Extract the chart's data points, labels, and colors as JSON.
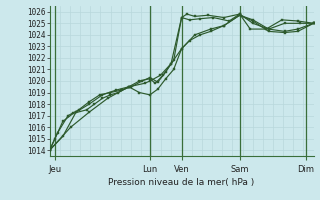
{
  "xlabel": "Pression niveau de la mer( hPa )",
  "bg_color": "#cce8ec",
  "grid_minor_color": "#b8d8dc",
  "grid_major_color": "#a0c4c8",
  "line_color": "#2d5a2d",
  "marker_color": "#2d5a2d",
  "ylim": [
    1013.5,
    1026.5
  ],
  "xlim": [
    0,
    100
  ],
  "yticks": [
    1014,
    1015,
    1016,
    1017,
    1018,
    1019,
    1020,
    1021,
    1022,
    1023,
    1024,
    1025,
    1026
  ],
  "day_positions": [
    2,
    38,
    50,
    72,
    97
  ],
  "day_labels": [
    "Jeu",
    "Lun",
    "Ven",
    "Sam",
    "Dim"
  ],
  "vline_positions": [
    2,
    38,
    50,
    72,
    97
  ],
  "series": [
    [
      [
        0,
        1014.0
      ],
      [
        2,
        1015.0
      ],
      [
        5,
        1016.5
      ],
      [
        9,
        1017.2
      ],
      [
        14,
        1017.5
      ],
      [
        17,
        1018.0
      ],
      [
        20,
        1018.5
      ],
      [
        23,
        1018.8
      ],
      [
        26,
        1019.0
      ],
      [
        30,
        1019.5
      ],
      [
        34,
        1020.0
      ],
      [
        38,
        1020.2
      ],
      [
        40,
        1019.8
      ],
      [
        43,
        1020.5
      ],
      [
        46,
        1021.5
      ],
      [
        50,
        1025.5
      ],
      [
        52,
        1025.8
      ],
      [
        55,
        1025.6
      ],
      [
        60,
        1025.7
      ],
      [
        66,
        1025.5
      ],
      [
        72,
        1025.8
      ],
      [
        76,
        1024.5
      ],
      [
        82,
        1024.5
      ],
      [
        88,
        1025.3
      ],
      [
        94,
        1025.2
      ],
      [
        100,
        1025.0
      ]
    ],
    [
      [
        0,
        1014.0
      ],
      [
        3,
        1015.5
      ],
      [
        7,
        1017.0
      ],
      [
        11,
        1017.5
      ],
      [
        15,
        1018.2
      ],
      [
        19,
        1018.8
      ],
      [
        23,
        1019.0
      ],
      [
        27,
        1019.2
      ],
      [
        31,
        1019.5
      ],
      [
        35,
        1020.0
      ],
      [
        38,
        1020.3
      ],
      [
        41,
        1019.9
      ],
      [
        44,
        1020.8
      ],
      [
        47,
        1021.8
      ],
      [
        50,
        1025.5
      ],
      [
        53,
        1025.3
      ],
      [
        57,
        1025.4
      ],
      [
        62,
        1025.5
      ],
      [
        68,
        1025.2
      ],
      [
        72,
        1025.8
      ],
      [
        77,
        1025.0
      ],
      [
        83,
        1024.5
      ],
      [
        89,
        1025.0
      ],
      [
        95,
        1025.0
      ],
      [
        100,
        1025.0
      ]
    ],
    [
      [
        0,
        1014.0
      ],
      [
        5,
        1015.2
      ],
      [
        10,
        1017.3
      ],
      [
        15,
        1018.0
      ],
      [
        20,
        1018.8
      ],
      [
        25,
        1019.2
      ],
      [
        30,
        1019.5
      ],
      [
        34,
        1019.0
      ],
      [
        38,
        1018.8
      ],
      [
        41,
        1019.3
      ],
      [
        44,
        1020.2
      ],
      [
        47,
        1021.0
      ],
      [
        50,
        1022.8
      ],
      [
        53,
        1023.5
      ],
      [
        57,
        1024.0
      ],
      [
        61,
        1024.3
      ],
      [
        66,
        1024.8
      ],
      [
        72,
        1025.7
      ],
      [
        77,
        1025.3
      ],
      [
        83,
        1024.5
      ],
      [
        89,
        1024.3
      ],
      [
        94,
        1024.5
      ],
      [
        100,
        1025.0
      ]
    ],
    [
      [
        0,
        1014.0
      ],
      [
        8,
        1016.0
      ],
      [
        15,
        1017.3
      ],
      [
        22,
        1018.5
      ],
      [
        30,
        1019.5
      ],
      [
        36,
        1019.8
      ],
      [
        38,
        1020.0
      ],
      [
        42,
        1020.5
      ],
      [
        46,
        1021.5
      ],
      [
        50,
        1022.8
      ],
      [
        55,
        1024.0
      ],
      [
        61,
        1024.5
      ],
      [
        66,
        1024.8
      ],
      [
        72,
        1025.7
      ],
      [
        77,
        1025.2
      ],
      [
        83,
        1024.3
      ],
      [
        89,
        1024.2
      ],
      [
        94,
        1024.3
      ],
      [
        100,
        1025.0
      ]
    ]
  ]
}
